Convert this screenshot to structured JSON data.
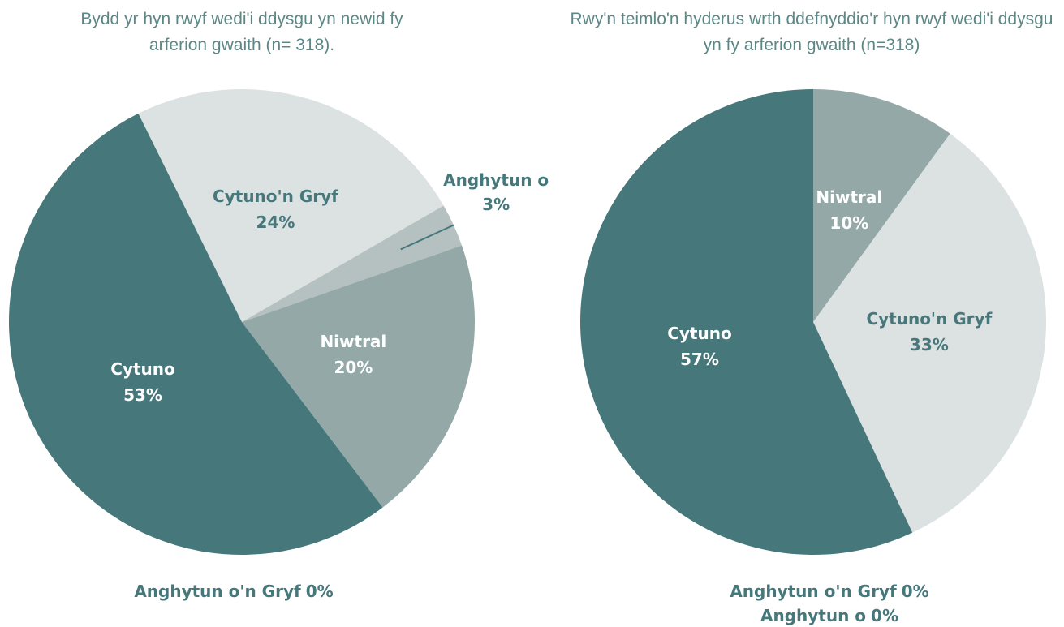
{
  "chart_data": [
    {
      "type": "pie",
      "title": "Bydd yr hyn rwyf wedi'i ddysgu yn newid fy arferion gwaith (n= 318).",
      "categories": [
        "Cytuno'n Gryf",
        "Anghytun o",
        "Niwtral",
        "Cytuno",
        "Anghytun o'n Gryf"
      ],
      "values": [
        24,
        3,
        20,
        53,
        0
      ],
      "value_labels": [
        "24%",
        "3%",
        "20%",
        "53%",
        "0%"
      ],
      "colors": [
        "#dce1e2",
        "#b5c1c0",
        "#93a8a7",
        "#46777a",
        "#2e5e60"
      ]
    },
    {
      "type": "pie",
      "title": "Rwy'n teimlo'n hyderus wrth ddefnyddio'r hyn rwyf wedi'i ddysgu yn fy arferion gwaith (n=318)",
      "categories": [
        "Niwtral",
        "Cytuno'n Gryf",
        "Cytuno",
        "Anghytun o'n Gryf",
        "Anghytun o"
      ],
      "values": [
        10,
        33,
        57,
        0,
        0
      ],
      "value_labels": [
        "10%",
        "33%",
        "57%",
        "0%",
        "0%"
      ],
      "colors": [
        "#93a8a7",
        "#dce1e2",
        "#46777a",
        "#2e5e60",
        "#b5c1c0"
      ]
    }
  ]
}
